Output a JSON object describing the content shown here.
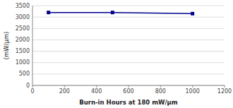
{
  "chart_data": {
    "type": "line",
    "x": [
      100,
      500,
      1000
    ],
    "values": [
      3200,
      3200,
      3150
    ],
    "xlim": [
      0,
      1200
    ],
    "ylim": [
      0,
      3500
    ],
    "xticks": [
      0,
      200,
      400,
      600,
      800,
      1000,
      1200
    ],
    "yticks": [
      0,
      500,
      1000,
      1500,
      2000,
      2500,
      3000,
      3500
    ],
    "x_label": "Burn-in Hours at 180 mW/μm",
    "y_label": "(mW/μm)",
    "color": "#00008B",
    "marker": "square",
    "grid": true
  }
}
